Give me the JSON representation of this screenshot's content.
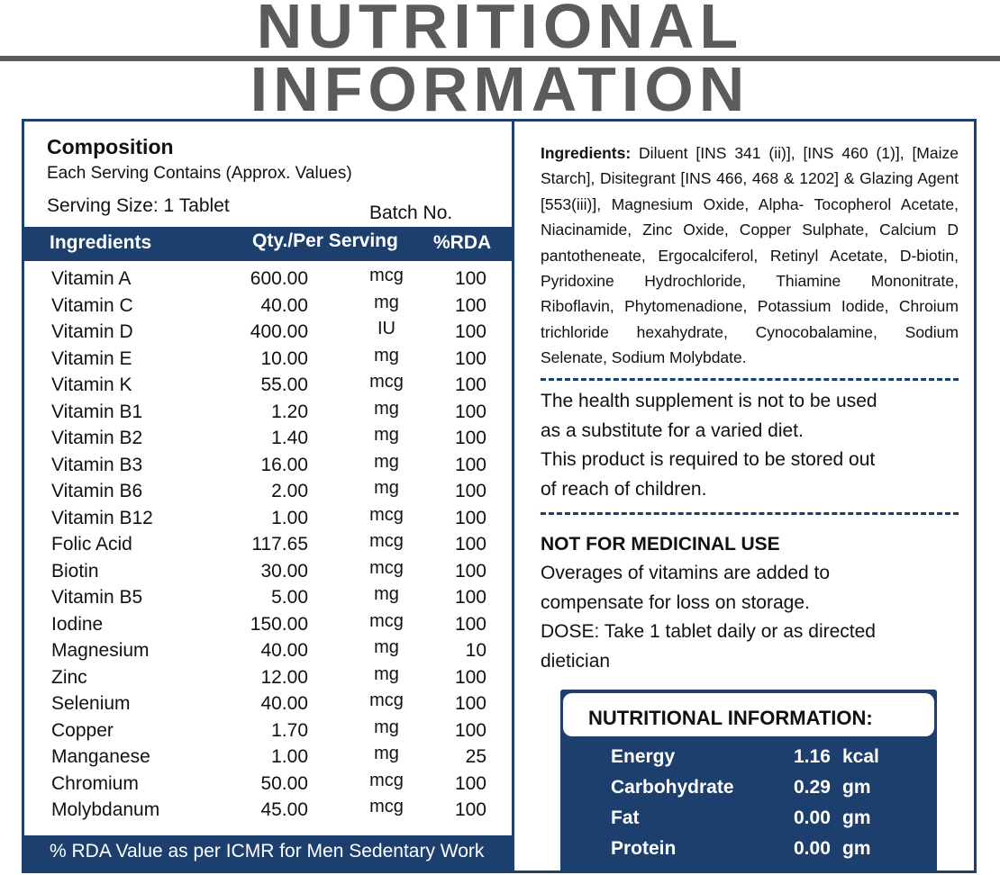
{
  "title": "NUTRITIONAL INFORMATION",
  "composition": {
    "title": "Composition",
    "subtitle": "Each Serving Contains (Approx. Values)",
    "serving_size": "Serving Size: 1 Tablet",
    "batch_label": "Batch No."
  },
  "table": {
    "headers": {
      "ingredient": "Ingredients",
      "qty": "Qty./Per Serving",
      "rda": "%RDA"
    },
    "rows": [
      {
        "name": "Vitamin A",
        "qty": "600.00",
        "unit": "mcg",
        "rda": "100"
      },
      {
        "name": "Vitamin C",
        "qty": "40.00",
        "unit": "mg",
        "rda": "100"
      },
      {
        "name": "Vitamin D",
        "qty": "400.00",
        "unit": "IU",
        "rda": "100"
      },
      {
        "name": "Vitamin E",
        "qty": "10.00",
        "unit": "mg",
        "rda": "100"
      },
      {
        "name": "Vitamin K",
        "qty": "55.00",
        "unit": "mcg",
        "rda": "100"
      },
      {
        "name": "Vitamin B1",
        "qty": "1.20",
        "unit": "mg",
        "rda": "100"
      },
      {
        "name": "Vitamin B2",
        "qty": "1.40",
        "unit": "mg",
        "rda": "100"
      },
      {
        "name": "Vitamin B3",
        "qty": "16.00",
        "unit": "mg",
        "rda": "100"
      },
      {
        "name": "Vitamin B6",
        "qty": "2.00",
        "unit": "mg",
        "rda": "100"
      },
      {
        "name": "Vitamin B12",
        "qty": "1.00",
        "unit": "mcg",
        "rda": "100"
      },
      {
        "name": "Folic Acid",
        "qty": "117.65",
        "unit": "mcg",
        "rda": "100"
      },
      {
        "name": "Biotin",
        "qty": "30.00",
        "unit": "mcg",
        "rda": "100"
      },
      {
        "name": "Vitamin B5",
        "qty": "5.00",
        "unit": "mg",
        "rda": "100"
      },
      {
        "name": "Iodine",
        "qty": "150.00",
        "unit": "mcg",
        "rda": "100"
      },
      {
        "name": "Magnesium",
        "qty": "40.00",
        "unit": "mg",
        "rda": "10"
      },
      {
        "name": "Zinc",
        "qty": "12.00",
        "unit": "mg",
        "rda": "100"
      },
      {
        "name": "Selenium",
        "qty": "40.00",
        "unit": "mcg",
        "rda": "100"
      },
      {
        "name": "Copper",
        "qty": "1.70",
        "unit": "mg",
        "rda": "100"
      },
      {
        "name": "Manganese",
        "qty": "1.00",
        "unit": "mg",
        "rda": "25"
      },
      {
        "name": "Chromium",
        "qty": "50.00",
        "unit": "mcg",
        "rda": "100"
      },
      {
        "name": "Molybdanum",
        "qty": "45.00",
        "unit": "mcg",
        "rda": "100"
      }
    ],
    "footer": "% RDA Value as per ICMR for Men Sedentary Work"
  },
  "ingredients": {
    "label": "Ingredients:",
    "text": "Diluent [INS 341 (ii)], [INS 460 (1)], [Maize Starch], Disitegrant [INS 466, 468 & 1202] & Glazing Agent [553(iii)], Magnesium Oxide, Alpha- Tocopherol Acetate, Niacinamide, Zinc Oxide, Copper Sulphate, Calcium D pantotheneate, Ergocalciferol, Retinyl Acetate, D-biotin, Pyridoxine Hydrochloride, Thiamine Mononitrate, Riboflavin, Phytomenadione, Potassium Iodide, Chroium trichloride hexahydrate, Cynocobalamine, Sodium Selenate, Sodium Molybdate."
  },
  "notes": {
    "line1": "The health supplement is not to be used",
    "line2": "as a substitute for a varied diet.",
    "line3": "This product is required to be stored out",
    "line4": "of reach of children.",
    "not_medicinal": "NOT FOR MEDICINAL USE",
    "line5": "Overages of vitamins are added to",
    "line6": "compensate for loss on storage.",
    "line7": "DOSE: Take 1 tablet daily or as directed",
    "line8": "dietician"
  },
  "nutrition": {
    "title": "NUTRITIONAL INFORMATION:",
    "items": [
      {
        "name": "Energy",
        "value": "1.16",
        "unit": "kcal"
      },
      {
        "name": "Carbohydrate",
        "value": "0.29",
        "unit": "gm"
      },
      {
        "name": "Fat",
        "value": "0.00",
        "unit": "gm"
      },
      {
        "name": "Protein",
        "value": "0.00",
        "unit": "gm"
      }
    ]
  },
  "colors": {
    "brand_blue": "#1c3f6e",
    "title_gray": "#5a5b5d"
  }
}
